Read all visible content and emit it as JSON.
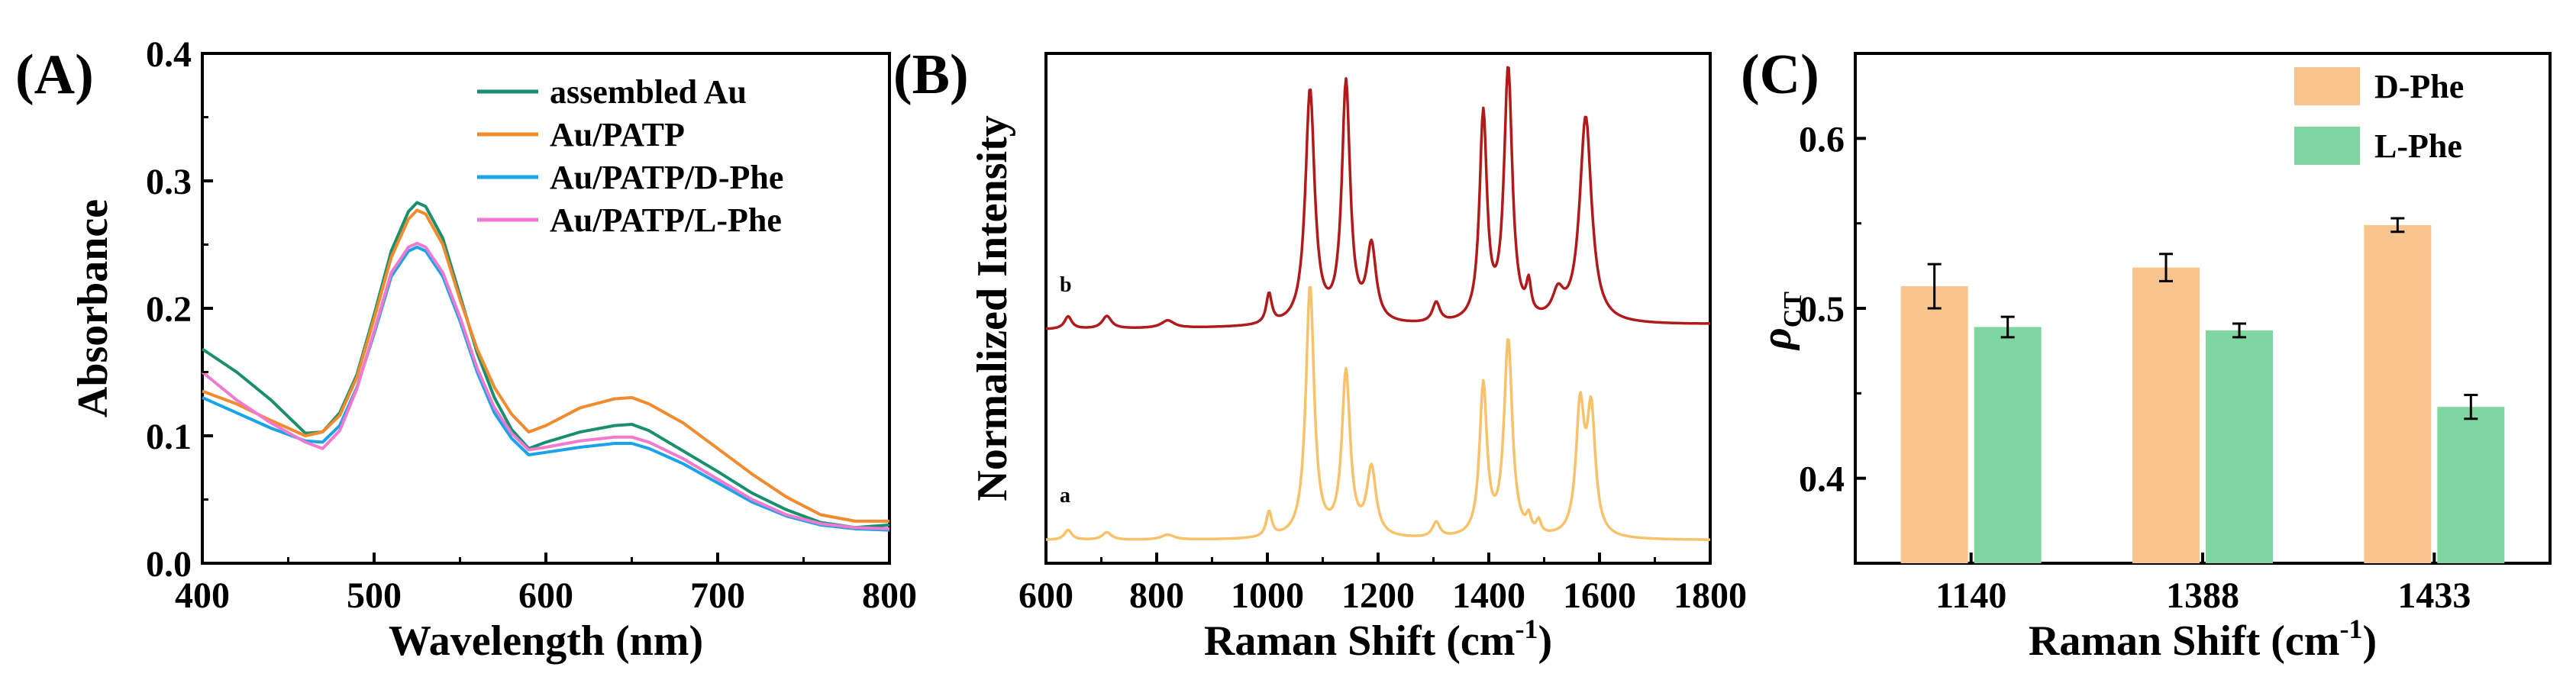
{
  "chart_data": [
    {
      "panel": "(A)",
      "type": "line",
      "xlabel": "Wavelength (nm)",
      "ylabel": "Absorbance",
      "xlim": [
        400,
        800
      ],
      "ylim": [
        0.0,
        0.4
      ],
      "xticks": [
        "400",
        "500",
        "600",
        "700",
        "800"
      ],
      "yticks": [
        "0.0",
        "0.1",
        "0.2",
        "0.3",
        "0.4"
      ],
      "legend": "top-right",
      "series": [
        {
          "name": "assembled Au",
          "color": "#1a8f6e",
          "x": [
            400,
            420,
            440,
            460,
            470,
            480,
            490,
            500,
            510,
            520,
            525,
            530,
            540,
            550,
            560,
            570,
            580,
            590,
            600,
            620,
            640,
            650,
            660,
            680,
            700,
            720,
            740,
            760,
            780,
            800
          ],
          "y": [
            0.168,
            0.15,
            0.128,
            0.102,
            0.103,
            0.118,
            0.148,
            0.195,
            0.245,
            0.276,
            0.283,
            0.28,
            0.255,
            0.21,
            0.165,
            0.13,
            0.105,
            0.09,
            0.095,
            0.103,
            0.108,
            0.109,
            0.104,
            0.088,
            0.072,
            0.055,
            0.042,
            0.032,
            0.028,
            0.03
          ]
        },
        {
          "name": "Au/PATP",
          "color": "#f28a2e",
          "x": [
            400,
            420,
            440,
            460,
            470,
            480,
            490,
            500,
            510,
            520,
            525,
            530,
            540,
            550,
            560,
            570,
            580,
            590,
            600,
            620,
            640,
            650,
            660,
            680,
            700,
            720,
            740,
            760,
            780,
            800
          ],
          "y": [
            0.135,
            0.125,
            0.112,
            0.1,
            0.103,
            0.116,
            0.146,
            0.192,
            0.24,
            0.27,
            0.277,
            0.274,
            0.25,
            0.207,
            0.168,
            0.138,
            0.117,
            0.103,
            0.108,
            0.122,
            0.129,
            0.13,
            0.125,
            0.11,
            0.09,
            0.07,
            0.052,
            0.038,
            0.033,
            0.033
          ]
        },
        {
          "name": "Au/PATP/D-Phe",
          "color": "#1aa3e8",
          "x": [
            400,
            420,
            440,
            460,
            470,
            480,
            490,
            500,
            510,
            520,
            525,
            530,
            540,
            550,
            560,
            570,
            580,
            590,
            600,
            620,
            640,
            650,
            660,
            680,
            700,
            720,
            740,
            760,
            780,
            800
          ],
          "y": [
            0.13,
            0.118,
            0.106,
            0.096,
            0.095,
            0.108,
            0.138,
            0.18,
            0.225,
            0.245,
            0.248,
            0.245,
            0.225,
            0.19,
            0.15,
            0.118,
            0.098,
            0.085,
            0.087,
            0.091,
            0.094,
            0.094,
            0.09,
            0.078,
            0.063,
            0.048,
            0.037,
            0.03,
            0.027,
            0.026
          ]
        },
        {
          "name": "Au/PATP/L-Phe",
          "color": "#f07ad0",
          "x": [
            400,
            420,
            440,
            460,
            470,
            480,
            490,
            500,
            510,
            520,
            525,
            530,
            540,
            550,
            560,
            570,
            580,
            590,
            600,
            620,
            640,
            650,
            660,
            680,
            700,
            720,
            740,
            760,
            780,
            800
          ],
          "y": [
            0.15,
            0.128,
            0.11,
            0.095,
            0.09,
            0.104,
            0.137,
            0.182,
            0.228,
            0.248,
            0.251,
            0.248,
            0.228,
            0.193,
            0.153,
            0.122,
            0.102,
            0.089,
            0.091,
            0.096,
            0.099,
            0.099,
            0.095,
            0.082,
            0.066,
            0.05,
            0.038,
            0.031,
            0.028,
            0.027
          ]
        }
      ]
    },
    {
      "panel": "(B)",
      "type": "line",
      "xlabel": "Raman Shift (cm",
      "xlabel_sup": "-1",
      "xlabel_end": ")",
      "ylabel": "Normalized Intensity",
      "xlim": [
        600,
        1800
      ],
      "xticks": [
        "600",
        "800",
        "1000",
        "1200",
        "1400",
        "1600",
        "1800"
      ],
      "series": [
        {
          "name": "b",
          "color": "#b01a1a",
          "offset": 1.0,
          "baseline_tilt": 0.02,
          "peaks": [
            [
              640,
              0.05,
              8
            ],
            [
              710,
              0.05,
              10
            ],
            [
              820,
              0.03,
              14
            ],
            [
              1003,
              0.12,
              6
            ],
            [
              1077,
              0.93,
              10
            ],
            [
              1142,
              0.95,
              9
            ],
            [
              1188,
              0.3,
              10
            ],
            [
              1305,
              0.08,
              8
            ],
            [
              1390,
              0.82,
              8
            ],
            [
              1435,
              1.0,
              9
            ],
            [
              1472,
              0.12,
              5
            ],
            [
              1525,
              0.1,
              12
            ],
            [
              1575,
              0.82,
              13
            ]
          ]
        },
        {
          "name": "a",
          "color": "#f7c26a",
          "offset": 0.0,
          "baseline_tilt": 0.0,
          "peaks": [
            [
              640,
              0.04,
              8
            ],
            [
              710,
              0.03,
              10
            ],
            [
              820,
              0.02,
              14
            ],
            [
              1003,
              0.1,
              6
            ],
            [
              1077,
              1.0,
              9
            ],
            [
              1142,
              0.65,
              9
            ],
            [
              1188,
              0.27,
              10
            ],
            [
              1305,
              0.06,
              8
            ],
            [
              1390,
              0.6,
              8
            ],
            [
              1435,
              0.78,
              9
            ],
            [
              1472,
              0.06,
              5
            ],
            [
              1490,
              0.05,
              5
            ],
            [
              1565,
              0.5,
              9
            ],
            [
              1585,
              0.48,
              9
            ]
          ]
        }
      ]
    },
    {
      "panel": "(C)",
      "type": "bar",
      "xlabel": "Raman Shift (cm",
      "xlabel_sup": "-1",
      "xlabel_end": ")",
      "ylabel": "ρ",
      "ylabel_sub": "CT",
      "ylim": [
        0.35,
        0.65
      ],
      "yticks": [
        "0.4",
        "0.5",
        "0.6"
      ],
      "categories": [
        "1140",
        "1388",
        "1433"
      ],
      "legend": "top-right",
      "series": [
        {
          "name": "D-Phe",
          "color": "#fac48f",
          "values": [
            0.513,
            0.524,
            0.549
          ],
          "errors": [
            0.013,
            0.008,
            0.004
          ]
        },
        {
          "name": "L-Phe",
          "color": "#7fd6a0",
          "values": [
            0.489,
            0.487,
            0.442
          ],
          "errors": [
            0.006,
            0.004,
            0.007
          ]
        }
      ]
    }
  ]
}
